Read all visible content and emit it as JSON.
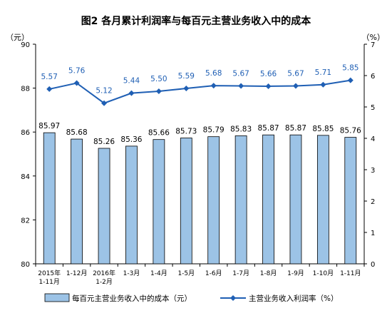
{
  "chart_data": {
    "type": "bar",
    "title": "图2  各月累计利润率与每百元主营业务收入中的成本",
    "left_unit": "（元）",
    "right_unit": "（%）",
    "categories": [
      [
        "2015年",
        "1-11月"
      ],
      [
        "1-12月"
      ],
      [
        "2016年",
        "1-2月"
      ],
      [
        "1-3月"
      ],
      [
        "1-4月"
      ],
      [
        "1-5月"
      ],
      [
        "1-6月"
      ],
      [
        "1-7月"
      ],
      [
        "1-8月"
      ],
      [
        "1-9月"
      ],
      [
        "1-10月"
      ],
      [
        "1-11月"
      ]
    ],
    "series": [
      {
        "name": "每百元主营业务收入中的成本（元）",
        "type": "bar",
        "axis": "left",
        "values": [
          85.97,
          85.68,
          85.26,
          85.36,
          85.66,
          85.73,
          85.79,
          85.83,
          85.87,
          85.87,
          85.85,
          85.76
        ],
        "labels": [
          "85.97",
          "85.68",
          "85.26",
          "85.36",
          "85.66",
          "85.73",
          "85.79",
          "85.83",
          "85.87",
          "85.87",
          "85.85",
          "85.76"
        ],
        "color": "#9cc3e6"
      },
      {
        "name": "主营业务收入利润率（%）",
        "type": "line",
        "axis": "right",
        "values": [
          5.57,
          5.76,
          5.12,
          5.44,
          5.5,
          5.59,
          5.68,
          5.67,
          5.66,
          5.67,
          5.71,
          5.85
        ],
        "labels": [
          "5.57",
          "5.76",
          "5.12",
          "5.44",
          "5.50",
          "5.59",
          "5.68",
          "5.67",
          "5.66",
          "5.67",
          "5.71",
          "5.85"
        ],
        "color": "#1f5fb4"
      }
    ],
    "left_axis": {
      "min": 80,
      "max": 90,
      "ticks": [
        80,
        82,
        84,
        86,
        88,
        90
      ],
      "tick_labels": [
        "80",
        "82",
        "84",
        "86",
        "88",
        "90"
      ]
    },
    "right_axis": {
      "min": 0,
      "max": 7,
      "ticks": [
        0,
        1,
        2,
        3,
        4,
        5,
        6,
        7
      ],
      "tick_labels": [
        "0",
        "1",
        "2",
        "3",
        "4",
        "5",
        "6",
        "7"
      ]
    },
    "grid": false,
    "legend_position": "bottom"
  }
}
